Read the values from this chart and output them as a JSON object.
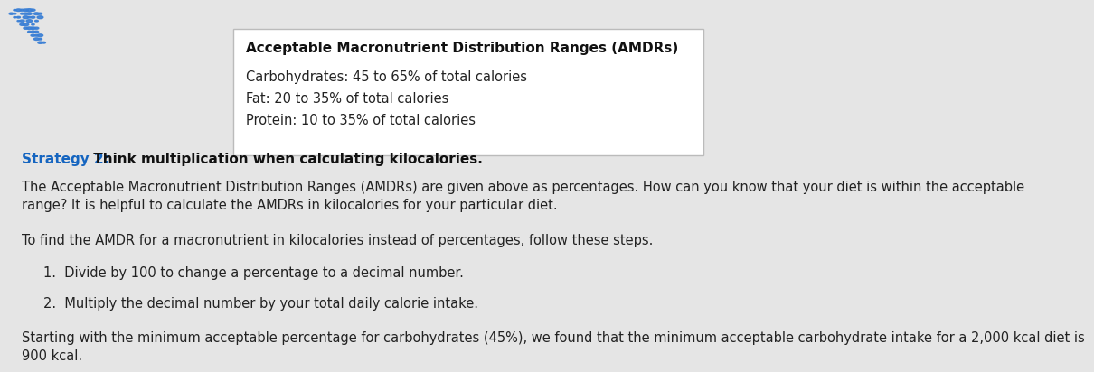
{
  "background_color": "#e5e5e5",
  "box_bg": "#ffffff",
  "box_border": "#bbbbbb",
  "box_title": "Acceptable Macronutrient Distribution Ranges (AMDRs)",
  "box_lines": [
    "Carbohydrates: 45 to 65% of total calories",
    "Fat: 20 to 35% of total calories",
    "Protein: 10 to 35% of total calories"
  ],
  "box_title_color": "#111111",
  "box_text_color": "#222222",
  "strategy_label": "Strategy 2:",
  "strategy_label_color": "#1565c0",
  "strategy_text": " Think multiplication when calculating kilocalories.",
  "strategy_text_color": "#111111",
  "para1": "The Acceptable Macronutrient Distribution Ranges (AMDRs) are given above as percentages. How can you know that your diet is within the acceptable\nrange? It is helpful to calculate the AMDRs in kilocalories for your particular diet.",
  "para2": "To find the AMDR for a macronutrient in kilocalories instead of percentages, follow these steps.",
  "list_item1": "1.  Divide by 100 to change a percentage to a decimal number.",
  "list_item2": "2.  Multiply the decimal number by your total daily calorie intake.",
  "para3": "Starting with the minimum acceptable percentage for carbohydrates (45%), we found that the minimum acceptable carbohydrate intake for a 2,000 kcal diet is\n900 kcal.",
  "text_color": "#222222",
  "dots_color": "#3a7fd5",
  "font_size_box_title": 11,
  "font_size_box_text": 10.5,
  "font_size_body": 10.5,
  "font_size_strategy": 11
}
